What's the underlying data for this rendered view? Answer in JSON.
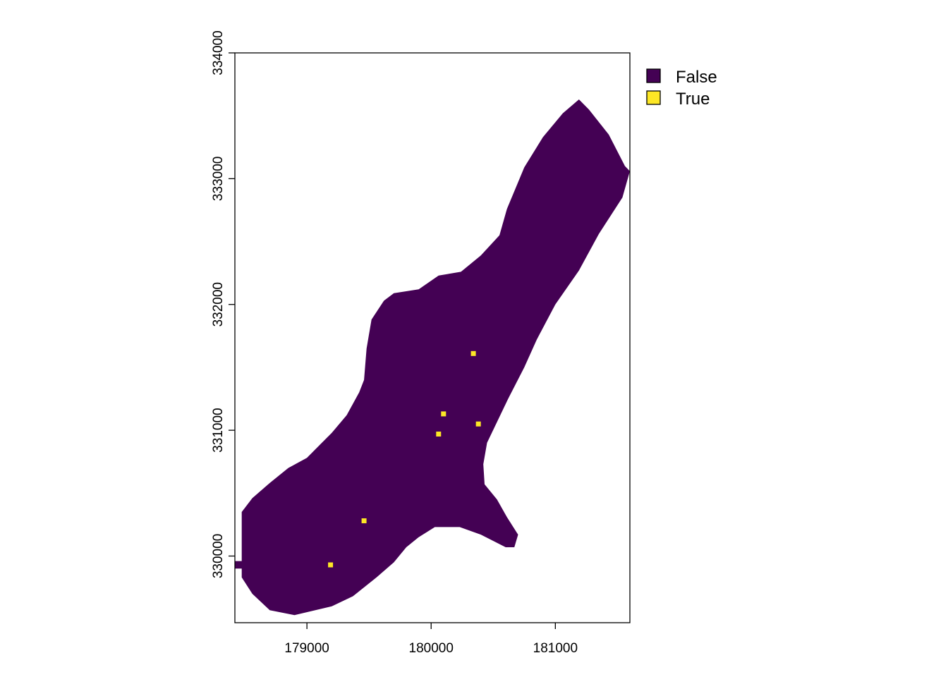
{
  "map": {
    "type": "raster",
    "x_range": [
      178420,
      181600
    ],
    "y_range": [
      329470,
      334000
    ],
    "x_ticks": [
      179000,
      180000,
      181000
    ],
    "y_ticks": [
      330000,
      331000,
      332000,
      333000,
      334000
    ],
    "x_tick_labels": [
      "179000",
      "180000",
      "181000"
    ],
    "y_tick_labels": [
      "330000",
      "331000",
      "332000",
      "333000",
      "334000"
    ]
  },
  "legend": {
    "placement": "right, outside plot, top",
    "items": [
      {
        "label": "False",
        "color": "#440154"
      },
      {
        "label": "True",
        "color": "#FDE725"
      }
    ]
  },
  "region": {
    "value": "False",
    "color": "#440154",
    "outline": [
      [
        178420,
        329960
      ],
      [
        178475,
        329960
      ],
      [
        178475,
        330350
      ],
      [
        178560,
        330460
      ],
      [
        178700,
        330580
      ],
      [
        178850,
        330700
      ],
      [
        179000,
        330780
      ],
      [
        179100,
        330880
      ],
      [
        179200,
        330980
      ],
      [
        179320,
        331120
      ],
      [
        179420,
        331300
      ],
      [
        179460,
        331400
      ],
      [
        179480,
        331650
      ],
      [
        179520,
        331880
      ],
      [
        179620,
        332030
      ],
      [
        179700,
        332090
      ],
      [
        179900,
        332120
      ],
      [
        180060,
        332230
      ],
      [
        180240,
        332260
      ],
      [
        180400,
        332390
      ],
      [
        180550,
        332550
      ],
      [
        180610,
        332760
      ],
      [
        180750,
        333090
      ],
      [
        180900,
        333330
      ],
      [
        181060,
        333520
      ],
      [
        181190,
        333630
      ],
      [
        181270,
        333550
      ],
      [
        181430,
        333350
      ],
      [
        181560,
        333100
      ],
      [
        181600,
        333060
      ],
      [
        181540,
        332850
      ],
      [
        181350,
        332560
      ],
      [
        181190,
        332270
      ],
      [
        181000,
        332000
      ],
      [
        180850,
        331720
      ],
      [
        180750,
        331500
      ],
      [
        180620,
        331250
      ],
      [
        180450,
        330900
      ],
      [
        180420,
        330730
      ],
      [
        180430,
        330570
      ],
      [
        180530,
        330450
      ],
      [
        180610,
        330310
      ],
      [
        180700,
        330170
      ],
      [
        180670,
        330070
      ],
      [
        180600,
        330070
      ],
      [
        180400,
        330170
      ],
      [
        180230,
        330230
      ],
      [
        180030,
        330230
      ],
      [
        179900,
        330150
      ],
      [
        179800,
        330070
      ],
      [
        179700,
        329950
      ],
      [
        179560,
        329830
      ],
      [
        179370,
        329680
      ],
      [
        179200,
        329600
      ],
      [
        178900,
        329530
      ],
      [
        178700,
        329570
      ],
      [
        178560,
        329700
      ],
      [
        178475,
        329830
      ],
      [
        178475,
        329900
      ],
      [
        178420,
        329900
      ]
    ]
  },
  "true_cells": [
    [
      180340,
      331610
    ],
    [
      180100,
      331130
    ],
    [
      180060,
      330970
    ],
    [
      180380,
      331050
    ],
    [
      179460,
      330280
    ],
    [
      179190,
      329930
    ]
  ],
  "cell_color_true": "#FDE725",
  "frame_color": "#000000"
}
